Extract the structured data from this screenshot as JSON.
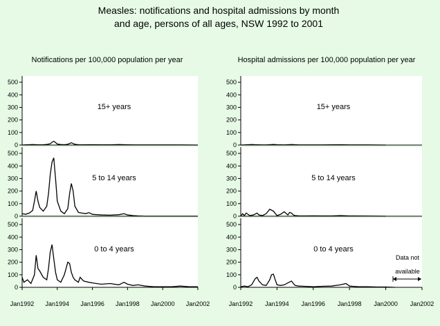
{
  "title": {
    "line1": "Measles: notifications and hospital admissions by month",
    "line2": "and age, persons of all ages, NSW 1992 to 2001"
  },
  "colors": {
    "background": "#E6FAE6",
    "plot": "#FFFFFF",
    "line": "#000000"
  },
  "chart_data": [
    {
      "type": "line",
      "title": "Notifications per 100,000 population per year",
      "x_tick_labels": [
        "Jan1992",
        "Jan1994",
        "Jan1996",
        "Jan1998",
        "Jan2000",
        "Jan2002"
      ],
      "xlim": [
        1992,
        2002
      ],
      "y_tick_labels": [
        "0",
        "100",
        "200",
        "300",
        "400",
        "500"
      ],
      "ylim": [
        0,
        550
      ],
      "panels": [
        {
          "label": "15+ years",
          "series": {
            "name": "15+ years",
            "x": [
              1992.0,
              1992.2,
              1992.4,
              1992.6,
              1992.8,
              1993.0,
              1993.2,
              1993.4,
              1993.6,
              1993.7,
              1993.8,
              1993.9,
              1994.0,
              1994.2,
              1994.4,
              1994.6,
              1994.8,
              1994.9,
              1995.0,
              1995.2,
              1995.5,
              1996.0,
              1996.5,
              1997.0,
              1997.5,
              1998.0,
              1998.5,
              1999.0,
              2000.0,
              2001.0,
              2002.0
            ],
            "y": [
              0,
              2,
              3,
              4,
              3,
              2,
              3,
              5,
              10,
              22,
              30,
              20,
              8,
              4,
              3,
              6,
              18,
              12,
              6,
              3,
              2,
              3,
              2,
              2,
              4,
              2,
              1,
              1,
              1,
              1,
              0
            ]
          }
        },
        {
          "label": "5 to 14 years",
          "series": {
            "name": "5 to 14 years",
            "x": [
              1992.0,
              1992.2,
              1992.4,
              1992.6,
              1992.7,
              1992.8,
              1992.9,
              1993.0,
              1993.2,
              1993.4,
              1993.5,
              1993.6,
              1993.7,
              1993.8,
              1993.9,
              1994.0,
              1994.2,
              1994.4,
              1994.6,
              1994.7,
              1994.8,
              1994.9,
              1995.0,
              1995.2,
              1995.4,
              1995.6,
              1995.8,
              1996.0,
              1996.5,
              1997.0,
              1997.5,
              1997.8,
              1998.0,
              1998.3,
              1998.6,
              1999.0,
              2000.0,
              2001.0,
              2002.0
            ],
            "y": [
              20,
              15,
              25,
              45,
              120,
              200,
              120,
              70,
              40,
              80,
              180,
              330,
              430,
              465,
              300,
              120,
              40,
              20,
              60,
              180,
              260,
              200,
              80,
              30,
              25,
              20,
              28,
              15,
              10,
              8,
              12,
              20,
              10,
              5,
              2,
              0,
              0,
              0,
              0
            ]
          }
        },
        {
          "label": "0 to 4 years",
          "series": {
            "name": "0 to 4 years",
            "x": [
              1992.0,
              1992.1,
              1992.3,
              1992.5,
              1992.7,
              1992.8,
              1992.9,
              1993.0,
              1993.2,
              1993.4,
              1993.5,
              1993.6,
              1993.7,
              1993.8,
              1993.9,
              1994.0,
              1994.2,
              1994.4,
              1994.6,
              1994.7,
              1994.8,
              1994.9,
              1995.0,
              1995.2,
              1995.3,
              1995.5,
              1995.8,
              1996.0,
              1996.5,
              1997.0,
              1997.5,
              1997.8,
              1998.0,
              1998.3,
              1998.6,
              1999.0,
              1999.5,
              2000.0,
              2000.5,
              2001.0,
              2001.5,
              2002.0
            ],
            "y": [
              80,
              40,
              60,
              30,
              100,
              255,
              150,
              130,
              80,
              60,
              150,
              280,
              340,
              230,
              120,
              60,
              40,
              100,
              200,
              190,
              120,
              80,
              60,
              40,
              80,
              50,
              40,
              35,
              25,
              30,
              20,
              40,
              25,
              15,
              20,
              10,
              5,
              5,
              5,
              10,
              5,
              5
            ]
          }
        }
      ]
    },
    {
      "type": "line",
      "title": "Hospital admissions per 100,000 population per year",
      "x_tick_labels": [
        "Jan1992",
        "Jan1994",
        "Jan1996",
        "Jan1998",
        "Jan2000",
        "Jan2002"
      ],
      "xlim": [
        1992,
        2002
      ],
      "y_tick_labels": [
        "0",
        "100",
        "200",
        "300",
        "400",
        "500"
      ],
      "ylim": [
        0,
        550
      ],
      "panels": [
        {
          "label": "15+ years",
          "series": {
            "name": "15+ years",
            "x": [
              1992.0,
              1992.2,
              1992.4,
              1992.6,
              1992.8,
              1993.0,
              1993.2,
              1993.4,
              1993.6,
              1993.8,
              1994.0,
              1994.2,
              1994.4,
              1994.6,
              1994.8,
              1995.0,
              1995.2,
              1995.5,
              1996.0,
              1996.5,
              1997.0,
              1997.5,
              1998.0,
              1999.0,
              2000.0
            ],
            "y": [
              0,
              1,
              3,
              4,
              3,
              2,
              1,
              1,
              3,
              5,
              3,
              2,
              1,
              3,
              4,
              3,
              1,
              1,
              1,
              1,
              2,
              3,
              1,
              1,
              0
            ]
          }
        },
        {
          "label": "5 to 14 years",
          "series": {
            "name": "5 to 14 years",
            "x": [
              1992.0,
              1992.1,
              1992.2,
              1992.3,
              1992.5,
              1992.7,
              1992.9,
              1993.0,
              1993.2,
              1993.4,
              1993.6,
              1993.8,
              1994.0,
              1994.2,
              1994.4,
              1994.6,
              1994.7,
              1994.8,
              1994.9,
              1995.0,
              1995.2,
              1995.5,
              1996.0,
              1996.5,
              1997.0,
              1997.5,
              1998.0,
              1999.0,
              2000.0
            ],
            "y": [
              0,
              20,
              5,
              25,
              5,
              10,
              25,
              10,
              5,
              20,
              55,
              40,
              5,
              15,
              35,
              10,
              30,
              25,
              10,
              5,
              3,
              2,
              3,
              2,
              2,
              5,
              2,
              1,
              0
            ]
          }
        },
        {
          "label": "0 to 4 years",
          "series": {
            "name": "0 to 4 years",
            "x": [
              1992.0,
              1992.2,
              1992.4,
              1992.6,
              1992.8,
              1992.9,
              1993.0,
              1993.2,
              1993.4,
              1993.6,
              1993.7,
              1993.8,
              1993.9,
              1994.0,
              1994.2,
              1994.4,
              1994.6,
              1994.8,
              1994.9,
              1995.0,
              1995.2,
              1995.5,
              1996.0,
              1996.5,
              1997.0,
              1997.5,
              1997.8,
              1998.0,
              1998.5,
              1999.0,
              1999.5,
              2000.0,
              2000.5
            ],
            "y": [
              5,
              10,
              5,
              20,
              70,
              80,
              50,
              20,
              15,
              60,
              100,
              105,
              60,
              20,
              15,
              20,
              35,
              50,
              30,
              15,
              10,
              8,
              5,
              8,
              10,
              20,
              30,
              10,
              5,
              5,
              3,
              3,
              0
            ]
          }
        }
      ],
      "annotation": {
        "line1": "Data not",
        "line2": "available"
      }
    }
  ]
}
